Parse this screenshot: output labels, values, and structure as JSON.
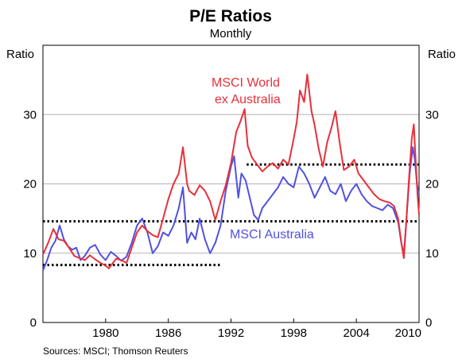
{
  "chart_data": {
    "type": "line",
    "title": "P/E Ratios",
    "subtitle": "Monthly",
    "y_unit_left": "Ratio",
    "y_unit_right": "Ratio",
    "ylim": [
      0,
      40
    ],
    "yticks": [
      0,
      10,
      20,
      30
    ],
    "xlim": [
      1974.0,
      2010.0
    ],
    "xticks": [
      1980,
      1986,
      1992,
      1998,
      2004,
      2010
    ],
    "grid": true,
    "source": "Sources: MSCI; Thomson Reuters",
    "series": [
      {
        "name": "MSCI World ex Australia",
        "label_lines": [
          "MSCI World",
          "ex Australia"
        ],
        "color": "#e8303a",
        "points": [
          [
            1974.0,
            9.8
          ],
          [
            1974.5,
            11.5
          ],
          [
            1975.0,
            13.5
          ],
          [
            1975.5,
            12.0
          ],
          [
            1976.0,
            11.8
          ],
          [
            1976.5,
            10.8
          ],
          [
            1977.0,
            9.6
          ],
          [
            1977.5,
            9.3
          ],
          [
            1978.0,
            9.0
          ],
          [
            1978.5,
            9.7
          ],
          [
            1979.0,
            9.1
          ],
          [
            1979.5,
            8.6
          ],
          [
            1980.0,
            8.2
          ],
          [
            1980.3,
            7.8
          ],
          [
            1980.7,
            8.6
          ],
          [
            1981.0,
            9.2
          ],
          [
            1981.5,
            9.0
          ],
          [
            1982.0,
            8.6
          ],
          [
            1982.5,
            10.8
          ],
          [
            1983.0,
            13.0
          ],
          [
            1983.5,
            14.0
          ],
          [
            1984.0,
            13.2
          ],
          [
            1984.5,
            12.6
          ],
          [
            1985.0,
            12.3
          ],
          [
            1985.5,
            15.0
          ],
          [
            1986.0,
            17.8
          ],
          [
            1986.5,
            20.0
          ],
          [
            1987.0,
            21.5
          ],
          [
            1987.4,
            25.3
          ],
          [
            1987.8,
            20.0
          ],
          [
            1988.0,
            19.0
          ],
          [
            1988.5,
            18.4
          ],
          [
            1989.0,
            19.8
          ],
          [
            1989.5,
            19.0
          ],
          [
            1990.0,
            17.5
          ],
          [
            1990.5,
            14.8
          ],
          [
            1991.0,
            17.5
          ],
          [
            1991.5,
            19.8
          ],
          [
            1992.0,
            23.0
          ],
          [
            1992.5,
            27.5
          ],
          [
            1992.9,
            29.0
          ],
          [
            1993.3,
            30.8
          ],
          [
            1993.6,
            25.5
          ],
          [
            1994.0,
            23.8
          ],
          [
            1994.5,
            22.8
          ],
          [
            1995.0,
            21.8
          ],
          [
            1995.5,
            22.5
          ],
          [
            1996.0,
            23.0
          ],
          [
            1996.5,
            22.2
          ],
          [
            1997.0,
            23.5
          ],
          [
            1997.5,
            22.8
          ],
          [
            1998.0,
            26.5
          ],
          [
            1998.3,
            29.0
          ],
          [
            1998.6,
            33.5
          ],
          [
            1999.0,
            31.8
          ],
          [
            1999.3,
            35.8
          ],
          [
            1999.7,
            30.5
          ],
          [
            2000.0,
            28.5
          ],
          [
            2000.4,
            25.0
          ],
          [
            2000.8,
            22.5
          ],
          [
            2001.2,
            26.0
          ],
          [
            2001.6,
            28.0
          ],
          [
            2002.0,
            30.5
          ],
          [
            2002.4,
            26.0
          ],
          [
            2002.8,
            22.0
          ],
          [
            2003.3,
            22.5
          ],
          [
            2003.8,
            23.5
          ],
          [
            2004.2,
            21.5
          ],
          [
            2004.7,
            20.5
          ],
          [
            2005.2,
            19.5
          ],
          [
            2005.7,
            18.5
          ],
          [
            2006.2,
            17.8
          ],
          [
            2006.7,
            17.5
          ],
          [
            2007.2,
            17.3
          ],
          [
            2007.6,
            16.8
          ],
          [
            2008.0,
            15.0
          ],
          [
            2008.3,
            11.5
          ],
          [
            2008.55,
            9.3
          ],
          [
            2008.75,
            14.0
          ],
          [
            2009.0,
            20.0
          ],
          [
            2009.3,
            26.5
          ],
          [
            2009.5,
            28.6
          ],
          [
            2009.7,
            22.5
          ],
          [
            2009.85,
            18.5
          ],
          [
            2010.0,
            15.5
          ]
        ]
      },
      {
        "name": "MSCI Australia",
        "label_lines": [
          "MSCI Australia"
        ],
        "color": "#5151e0",
        "points": [
          [
            1974.0,
            7.5
          ],
          [
            1974.4,
            9.0
          ],
          [
            1974.8,
            10.8
          ],
          [
            1975.2,
            11.8
          ],
          [
            1975.6,
            14.0
          ],
          [
            1976.0,
            12.0
          ],
          [
            1976.4,
            11.0
          ],
          [
            1976.8,
            10.5
          ],
          [
            1977.2,
            10.8
          ],
          [
            1977.6,
            9.0
          ],
          [
            1978.0,
            9.6
          ],
          [
            1978.5,
            10.8
          ],
          [
            1979.0,
            11.2
          ],
          [
            1979.5,
            9.8
          ],
          [
            1980.0,
            9.0
          ],
          [
            1980.5,
            10.2
          ],
          [
            1981.0,
            9.6
          ],
          [
            1981.5,
            8.9
          ],
          [
            1982.0,
            9.5
          ],
          [
            1982.5,
            11.5
          ],
          [
            1983.0,
            14.0
          ],
          [
            1983.5,
            15.0
          ],
          [
            1984.0,
            13.0
          ],
          [
            1984.5,
            10.0
          ],
          [
            1985.0,
            11.0
          ],
          [
            1985.5,
            13.0
          ],
          [
            1986.0,
            12.5
          ],
          [
            1986.5,
            14.0
          ],
          [
            1987.0,
            16.5
          ],
          [
            1987.4,
            19.5
          ],
          [
            1987.8,
            11.5
          ],
          [
            1988.2,
            13.0
          ],
          [
            1988.6,
            12.0
          ],
          [
            1989.0,
            15.0
          ],
          [
            1989.5,
            12.0
          ],
          [
            1990.0,
            10.0
          ],
          [
            1990.5,
            11.5
          ],
          [
            1991.0,
            14.0
          ],
          [
            1991.5,
            19.0
          ],
          [
            1992.0,
            22.5
          ],
          [
            1992.3,
            24.0
          ],
          [
            1992.7,
            18.0
          ],
          [
            1993.0,
            21.5
          ],
          [
            1993.4,
            20.5
          ],
          [
            1993.8,
            18.0
          ],
          [
            1994.2,
            15.5
          ],
          [
            1994.6,
            14.8
          ],
          [
            1995.0,
            16.5
          ],
          [
            1995.5,
            17.5
          ],
          [
            1996.0,
            18.5
          ],
          [
            1996.5,
            19.5
          ],
          [
            1997.0,
            21.0
          ],
          [
            1997.5,
            20.0
          ],
          [
            1998.0,
            19.5
          ],
          [
            1998.5,
            22.5
          ],
          [
            1999.0,
            21.5
          ],
          [
            1999.5,
            20.0
          ],
          [
            2000.0,
            18.0
          ],
          [
            2000.5,
            19.5
          ],
          [
            2001.0,
            21.0
          ],
          [
            2001.5,
            19.0
          ],
          [
            2002.0,
            18.5
          ],
          [
            2002.5,
            20.0
          ],
          [
            2003.0,
            17.5
          ],
          [
            2003.5,
            19.0
          ],
          [
            2004.0,
            20.0
          ],
          [
            2004.5,
            18.5
          ],
          [
            2005.0,
            17.5
          ],
          [
            2005.5,
            16.8
          ],
          [
            2006.0,
            16.5
          ],
          [
            2006.5,
            16.2
          ],
          [
            2007.0,
            17.0
          ],
          [
            2007.5,
            16.5
          ],
          [
            2008.0,
            14.5
          ],
          [
            2008.3,
            11.5
          ],
          [
            2008.55,
            9.8
          ],
          [
            2008.8,
            15.0
          ],
          [
            2009.1,
            21.5
          ],
          [
            2009.4,
            25.3
          ],
          [
            2009.6,
            23.5
          ],
          [
            2009.8,
            20.0
          ],
          [
            2010.0,
            18.5
          ]
        ]
      }
    ],
    "averages": [
      {
        "x0": 1974.0,
        "x1": 1991.0,
        "y": 8.3
      },
      {
        "x0": 1974.0,
        "x1": 2010.0,
        "y": 14.6
      },
      {
        "x0": 1993.5,
        "x1": 2010.0,
        "y": 22.8
      }
    ]
  }
}
